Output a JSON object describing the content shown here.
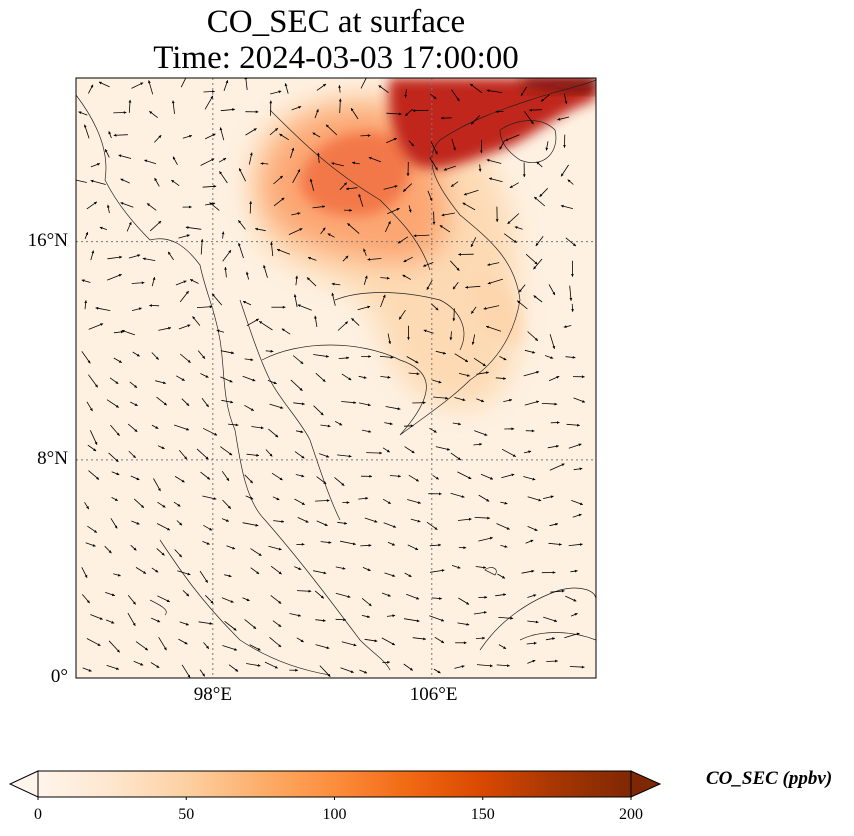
{
  "title_line_1": "CO_SEC at surface",
  "title_line_2": "Time: 2024-03-03 17:00:00",
  "lat_ticks": [
    {
      "value": 16,
      "label": "16°N"
    },
    {
      "value": 8,
      "label": "8°N"
    },
    {
      "value": 0,
      "label": "0°"
    }
  ],
  "lon_ticks": [
    {
      "value": 98,
      "label": "98°E"
    },
    {
      "value": 106,
      "label": "106°E"
    }
  ],
  "map_extent": {
    "lon_min": 93,
    "lon_max": 112,
    "lat_min": 0,
    "lat_max": 22
  },
  "colorbar": {
    "label": "CO_SEC (ppbv)",
    "min": 0,
    "max": 200,
    "ticks": [
      {
        "value": 0,
        "label": "0"
      },
      {
        "value": 50,
        "label": "50"
      },
      {
        "value": 100,
        "label": "100"
      },
      {
        "value": 150,
        "label": "150"
      },
      {
        "value": 200,
        "label": "200"
      }
    ],
    "colormap": [
      "#fff5eb",
      "#fee6ce",
      "#fdd0a2",
      "#fdae6b",
      "#fd8d3c",
      "#f16913",
      "#d94801",
      "#a63603",
      "#7f2704"
    ]
  },
  "colors": {
    "low_field": "#fef1e2",
    "grid": "#777777",
    "coast": "#222222",
    "vectors": "#000000"
  }
}
